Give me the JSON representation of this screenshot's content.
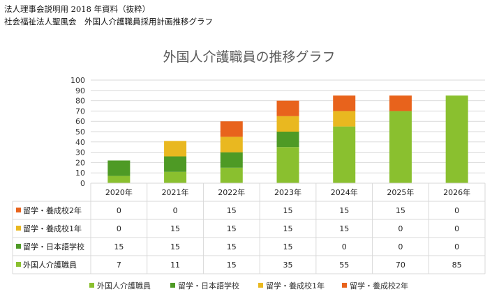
{
  "doc": {
    "line1": "法人理事会説明用 2018 年資料（抜粋）",
    "line2": "社会福祉法人聖風会　外国人介護職員採用計画推移グラフ"
  },
  "chart_data": {
    "type": "bar",
    "stacked": true,
    "title": "外国人介護職員の推移グラフ",
    "categories": [
      "2020年",
      "2021年",
      "2022年",
      "2023年",
      "2024年",
      "2025年",
      "2026年"
    ],
    "ylim": [
      0,
      100
    ],
    "yticks": [
      0,
      10,
      20,
      30,
      40,
      50,
      60,
      70,
      80,
      90,
      100
    ],
    "grid": true,
    "legend_position": "bottom",
    "series": [
      {
        "name": "外国人介護職員",
        "color": "#8ac02f",
        "values": [
          7,
          11,
          15,
          35,
          55,
          70,
          85
        ]
      },
      {
        "name": "留学・日本語学校",
        "color": "#4e9a25",
        "values": [
          15,
          15,
          15,
          15,
          0,
          0,
          0
        ]
      },
      {
        "name": "留学・養成校1年",
        "color": "#e9b820",
        "values": [
          0,
          15,
          15,
          15,
          15,
          0,
          0
        ]
      },
      {
        "name": "留学・養成校2年",
        "color": "#e8631c",
        "values": [
          0,
          0,
          15,
          15,
          15,
          15,
          0
        ]
      }
    ],
    "table_row_order": [
      3,
      2,
      1,
      0
    ]
  }
}
